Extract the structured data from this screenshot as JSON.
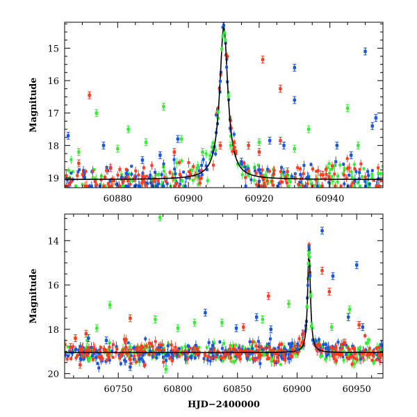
{
  "chart_data": [
    {
      "type": "scatter",
      "panel": "top",
      "title": "",
      "xlabel": "",
      "ylabel": "Magnitude",
      "xlim": [
        60865,
        60955
      ],
      "ylim": [
        19.3,
        14.2
      ],
      "y_inverted": true,
      "xticks": [
        60880,
        60900,
        60920,
        60940
      ],
      "yticks": [
        15,
        16,
        17,
        18,
        19
      ],
      "grid": false,
      "colors": {
        "red": "#ff3c22",
        "green": "#33ee33",
        "blue": "#1a55dd",
        "model": "#000000"
      },
      "model_curve": {
        "peak_x": 60910,
        "peak_mag": 14.35,
        "baseline_mag": 19.05,
        "width_days": 1.4
      },
      "series": [
        {
          "name": "red",
          "x": [
            60872,
            60921,
            60926,
            60926,
            60869,
            60878,
            60896,
            60909,
            60913,
            60917,
            60920,
            60928,
            60938
          ],
          "y": [
            16.45,
            15.35,
            16.25,
            17.85,
            18.55,
            18.7,
            18.2,
            18.0,
            18.05,
            18.0,
            18.2,
            18.8,
            18.9
          ]
        },
        {
          "name": "green",
          "x": [
            60874,
            60883,
            60888,
            60893,
            60898,
            60912,
            60920,
            60930,
            60934,
            60945,
            60948,
            60869,
            60880,
            60904
          ],
          "y": [
            17.0,
            17.5,
            17.9,
            16.8,
            17.8,
            18.0,
            17.9,
            18.1,
            17.5,
            16.85,
            18.0,
            18.2,
            18.1,
            18.2
          ]
        },
        {
          "name": "blue",
          "x": [
            60866,
            60876,
            60892,
            60897,
            60930,
            60930,
            60950,
            60952,
            60953,
            60923,
            60927,
            60942,
            60946,
            60915,
            60887
          ],
          "y": [
            17.7,
            18.0,
            18.3,
            17.8,
            15.6,
            16.6,
            15.1,
            17.4,
            17.15,
            17.85,
            18.0,
            18.0,
            18.3,
            18.5,
            18.45
          ]
        }
      ]
    },
    {
      "type": "scatter",
      "panel": "bottom",
      "title": "",
      "xlabel": "HJD−2400000",
      "ylabel": "Magnitude",
      "xlim": [
        60705,
        60972
      ],
      "ylim": [
        20.2,
        12.8
      ],
      "y_inverted": true,
      "xticks": [
        60750,
        60800,
        60850,
        60900,
        60950
      ],
      "yticks": [
        14,
        16,
        18,
        20
      ],
      "grid": false,
      "colors": {
        "red": "#ff3c22",
        "green": "#33ee33",
        "blue": "#1a55dd",
        "model": "#000000"
      },
      "model_curve": {
        "peak_x": 60910,
        "peak_mag": 14.35,
        "baseline_mag": 19.05,
        "width_days": 1.4
      },
      "series": [
        {
          "name": "red",
          "x": [
            60710,
            60714,
            60718,
            60723,
            60760,
            60855,
            60876,
            60921,
            60927,
            60952,
            60940,
            60905
          ],
          "y": [
            18.8,
            18.4,
            19.6,
            18.2,
            17.5,
            17.9,
            16.5,
            15.35,
            16.3,
            17.8,
            18.6,
            18.2
          ]
        },
        {
          "name": "green",
          "x": [
            60785,
            60732,
            60743,
            60760,
            60781,
            60800,
            60814,
            60837,
            60871,
            60893,
            60912,
            60929,
            60944,
            60724,
            60790
          ],
          "y": [
            12.95,
            17.95,
            16.9,
            18.8,
            17.55,
            17.95,
            17.7,
            17.7,
            17.55,
            16.85,
            17.85,
            17.9,
            17.1,
            18.5,
            19.8
          ]
        },
        {
          "name": "blue",
          "x": [
            60921,
            60930,
            60950,
            60725,
            60740,
            60823,
            60849,
            60866,
            60943,
            60900,
            60760,
            60878,
            60955
          ],
          "y": [
            13.55,
            15.6,
            15.1,
            18.4,
            18.5,
            17.25,
            17.95,
            17.45,
            17.45,
            18.9,
            19.7,
            18.0,
            17.9
          ]
        }
      ]
    }
  ]
}
